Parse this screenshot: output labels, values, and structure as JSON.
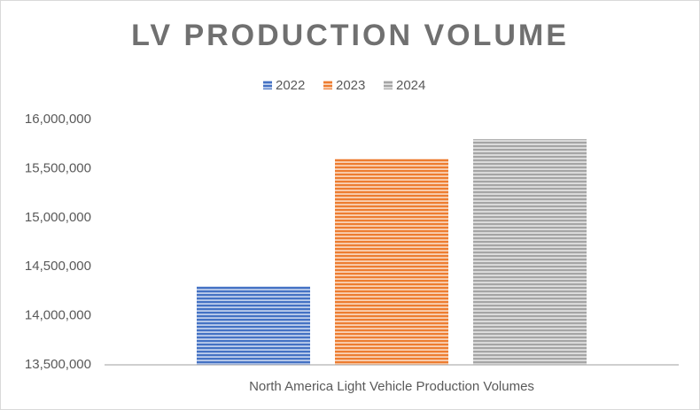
{
  "chart_data": {
    "type": "bar",
    "title": "LV PRODUCTION VOLUME",
    "categories": [
      "North America Light Vehicle Production Volumes"
    ],
    "series": [
      {
        "name": "2022",
        "color": "#4472c4",
        "values": [
          14300000
        ]
      },
      {
        "name": "2023",
        "color": "#ed7d31",
        "values": [
          15600000
        ]
      },
      {
        "name": "2024",
        "color": "#a5a5a5",
        "values": [
          15800000
        ]
      }
    ],
    "ylim": [
      13500000,
      16000000
    ],
    "yticks": [
      {
        "value": 13500000,
        "label": "13,500,000"
      },
      {
        "value": 14000000,
        "label": "14,000,000"
      },
      {
        "value": 14500000,
        "label": "14,500,000"
      },
      {
        "value": 15000000,
        "label": "15,000,000"
      },
      {
        "value": 15500000,
        "label": "15,500,000"
      },
      {
        "value": 16000000,
        "label": "16,000,000"
      }
    ],
    "grid": false,
    "legend": "top"
  }
}
